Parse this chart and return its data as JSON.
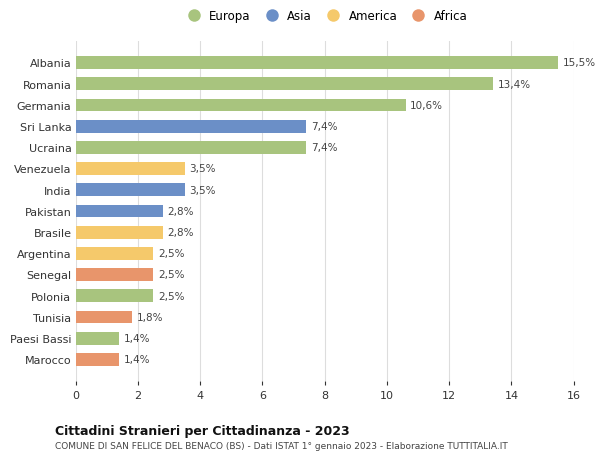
{
  "countries": [
    "Albania",
    "Romania",
    "Germania",
    "Sri Lanka",
    "Ucraina",
    "Venezuela",
    "India",
    "Pakistan",
    "Brasile",
    "Argentina",
    "Senegal",
    "Polonia",
    "Tunisia",
    "Paesi Bassi",
    "Marocco"
  ],
  "values": [
    15.5,
    13.4,
    10.6,
    7.4,
    7.4,
    3.5,
    3.5,
    2.8,
    2.8,
    2.5,
    2.5,
    2.5,
    1.8,
    1.4,
    1.4
  ],
  "labels": [
    "15,5%",
    "13,4%",
    "10,6%",
    "7,4%",
    "7,4%",
    "3,5%",
    "3,5%",
    "2,8%",
    "2,8%",
    "2,5%",
    "2,5%",
    "2,5%",
    "1,8%",
    "1,4%",
    "1,4%"
  ],
  "continents": [
    "Europa",
    "Europa",
    "Europa",
    "Asia",
    "Europa",
    "America",
    "Asia",
    "Asia",
    "America",
    "America",
    "Africa",
    "Europa",
    "Africa",
    "Europa",
    "Africa"
  ],
  "colors": {
    "Europa": "#a8c47e",
    "Asia": "#6b8fc7",
    "America": "#f5c96b",
    "Africa": "#e8956b"
  },
  "legend_order": [
    "Europa",
    "Asia",
    "America",
    "Africa"
  ],
  "xlim": [
    0,
    16
  ],
  "xticks": [
    0,
    2,
    4,
    6,
    8,
    10,
    12,
    14,
    16
  ],
  "title": "Cittadini Stranieri per Cittadinanza - 2023",
  "subtitle": "COMUNE DI SAN FELICE DEL BENACO (BS) - Dati ISTAT 1° gennaio 2023 - Elaborazione TUTTITALIA.IT",
  "bg_color": "#ffffff",
  "grid_color": "#dddddd",
  "bar_height": 0.6
}
